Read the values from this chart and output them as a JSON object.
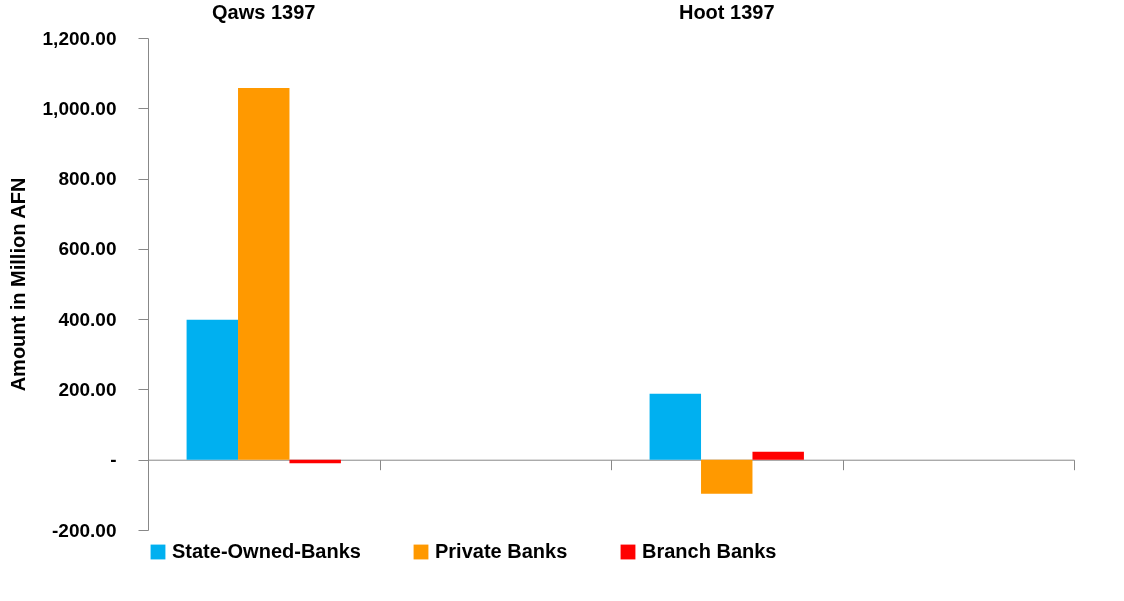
{
  "chart_data": {
    "type": "bar",
    "categories": [
      "Qaws 1397",
      null,
      "Hoot 1397",
      null
    ],
    "ylabel": "Amount in Million AFN",
    "ylim": [
      -200,
      1200
    ],
    "yticks": [
      {
        "value": -200,
        "label": "-200.00"
      },
      {
        "value": 0,
        "label": "-"
      },
      {
        "value": 200,
        "label": "200.00"
      },
      {
        "value": 400,
        "label": "400.00"
      },
      {
        "value": 600,
        "label": "600.00"
      },
      {
        "value": 800,
        "label": "800.00"
      },
      {
        "value": 1000,
        "label": "1,000.00"
      },
      {
        "value": 1200,
        "label": "1,200.00"
      }
    ],
    "series": [
      {
        "name": "State-Owned-Banks",
        "color": "#00b0f0",
        "values": [
          398,
          null,
          188,
          null
        ]
      },
      {
        "name": "Private Banks",
        "color": "#ff9900",
        "values": [
          1058,
          null,
          -97,
          null
        ]
      },
      {
        "name": "Branch Banks",
        "color": "#ff0000",
        "values": [
          -10,
          null,
          23,
          null
        ]
      }
    ],
    "legend": "bottom"
  }
}
